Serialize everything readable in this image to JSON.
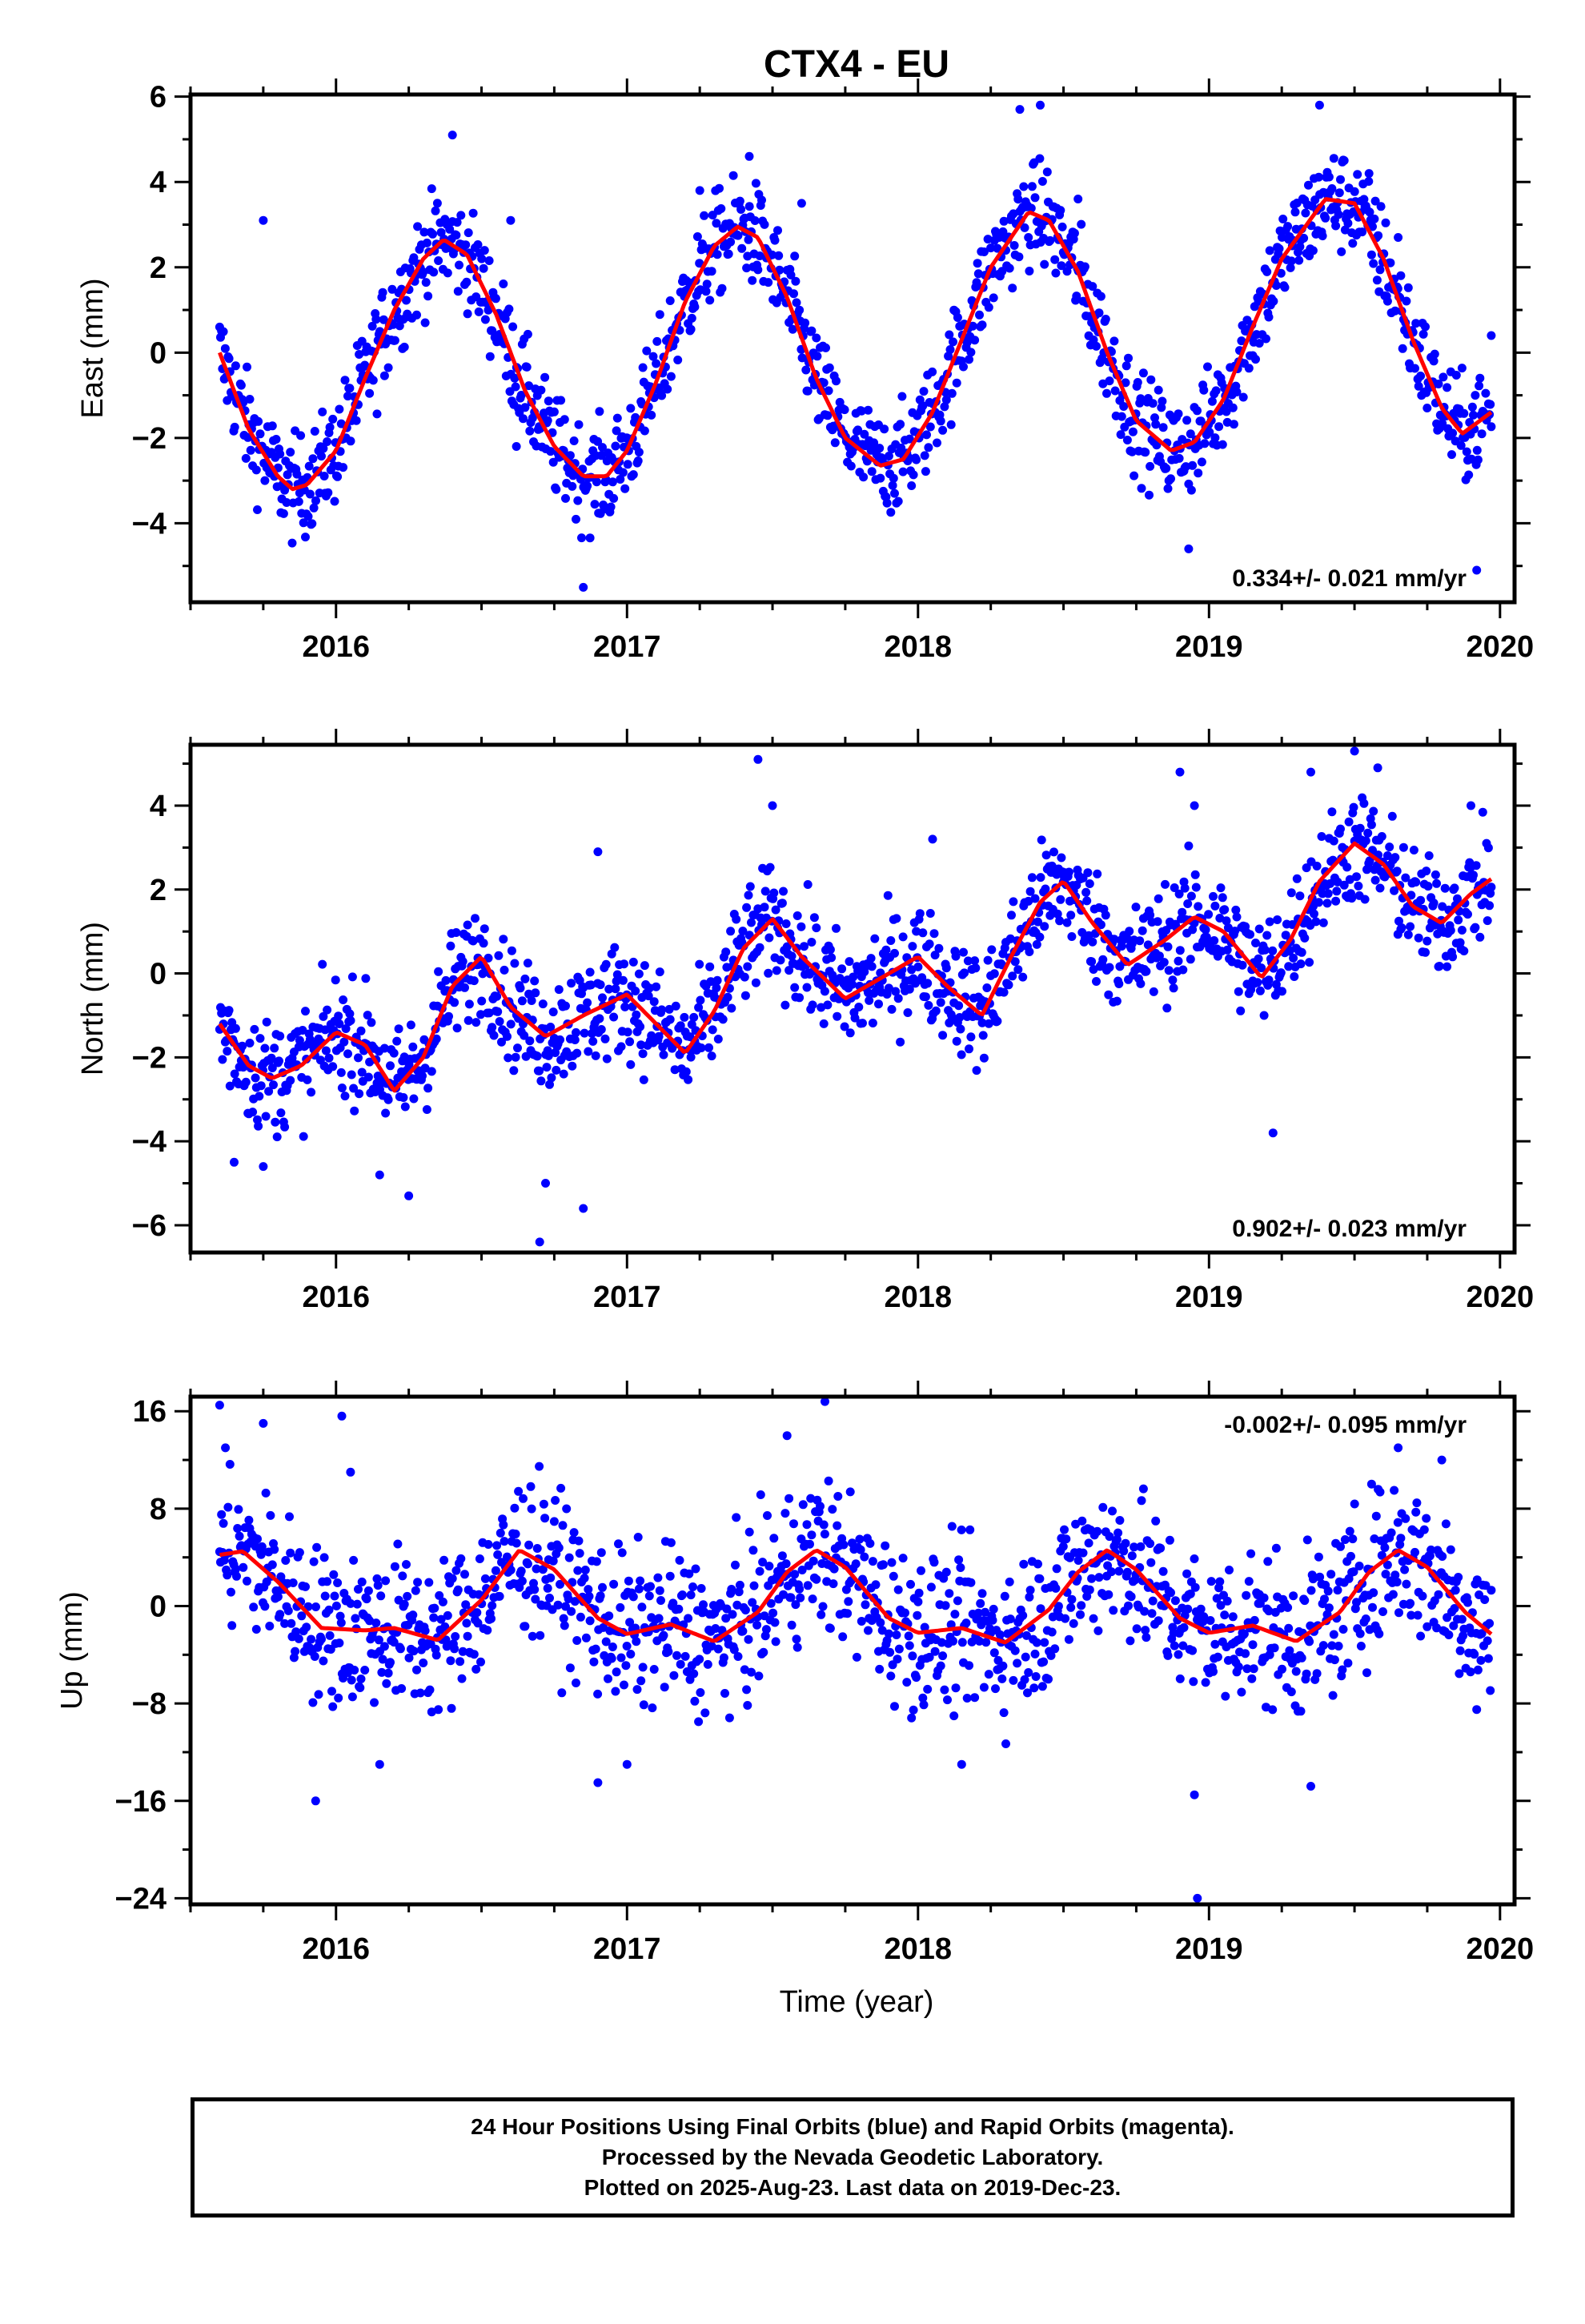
{
  "figure": {
    "title": "CTX4 - EU",
    "xlabel": "Time (year)"
  },
  "colors": {
    "points": "#0000ff",
    "fit": "#ff0000",
    "frame": "#000000"
  },
  "chart_data": [
    {
      "type": "scatter",
      "panel": "east",
      "ylabel": "East (mm)",
      "rate_label": "0.334+/- 0.021 mm/yr",
      "rate_position": "bottom-right",
      "xlim": [
        2015.5,
        2020.05
      ],
      "ylim": [
        -5.85,
        6.05
      ],
      "x_ticks": [
        2016,
        2017,
        2018,
        2019,
        2020
      ],
      "x_tick_labels": [
        "2016",
        "2017",
        "2018",
        "2019",
        "2020"
      ],
      "y_ticks": [
        -4,
        -2,
        0,
        2,
        4,
        6
      ],
      "y_tick_labels": [
        "−4",
        "−2",
        "0",
        "2",
        "4",
        "6"
      ],
      "fit_line": {
        "x": [
          2015.6,
          2015.7,
          2015.8,
          2015.85,
          2015.9,
          2016.0,
          2016.1,
          2016.2,
          2016.3,
          2016.37,
          2016.45,
          2016.55,
          2016.65,
          2016.75,
          2016.85,
          2016.93,
          2017.0,
          2017.1,
          2017.2,
          2017.3,
          2017.38,
          2017.45,
          2017.55,
          2017.65,
          2017.75,
          2017.87,
          2017.95,
          2018.05,
          2018.15,
          2018.25,
          2018.38,
          2018.45,
          2018.55,
          2018.65,
          2018.75,
          2018.87,
          2018.95,
          2019.05,
          2019.15,
          2019.25,
          2019.4,
          2019.5,
          2019.6,
          2019.7,
          2019.8,
          2019.87,
          2019.97
        ],
        "y": [
          0.0,
          -1.8,
          -2.9,
          -3.2,
          -3.1,
          -2.3,
          -0.6,
          1.0,
          2.2,
          2.65,
          2.3,
          0.9,
          -0.9,
          -2.2,
          -2.9,
          -2.9,
          -2.3,
          -0.7,
          1.2,
          2.5,
          2.95,
          2.7,
          1.3,
          -0.6,
          -2.0,
          -2.65,
          -2.5,
          -1.4,
          0.3,
          2.0,
          3.3,
          3.1,
          1.9,
          0.0,
          -1.6,
          -2.3,
          -2.1,
          -1.1,
          0.6,
          2.2,
          3.6,
          3.5,
          2.2,
          0.3,
          -1.3,
          -1.9,
          -1.4
        ]
      },
      "outliers": [
        [
          2015.75,
          3.1
        ],
        [
          2016.4,
          5.1
        ],
        [
          2016.6,
          3.1
        ],
        [
          2016.62,
          -2.2
        ],
        [
          2016.85,
          -5.5
        ],
        [
          2017.25,
          3.8
        ],
        [
          2017.42,
          4.6
        ],
        [
          2017.6,
          3.5
        ],
        [
          2018.35,
          5.7
        ],
        [
          2018.42,
          5.8
        ],
        [
          2018.55,
          3.6
        ],
        [
          2018.93,
          -4.6
        ],
        [
          2019.38,
          5.8
        ],
        [
          2019.55,
          4.2
        ],
        [
          2019.65,
          2.7
        ],
        [
          2019.92,
          -5.1
        ],
        [
          2019.97,
          0.4
        ]
      ],
      "noise_amp": 0.85
    },
    {
      "type": "scatter",
      "panel": "north",
      "ylabel": "North (mm)",
      "rate_label": "0.902+/- 0.023 mm/yr",
      "rate_position": "bottom-right",
      "xlim": [
        2015.5,
        2020.05
      ],
      "ylim": [
        -6.65,
        5.45
      ],
      "x_ticks": [
        2016,
        2017,
        2018,
        2019,
        2020
      ],
      "x_tick_labels": [
        "2016",
        "2017",
        "2018",
        "2019",
        "2020"
      ],
      "y_ticks": [
        -6,
        -4,
        -2,
        0,
        2,
        4
      ],
      "y_tick_labels": [
        "−6",
        "−4",
        "−2",
        "0",
        "2",
        "4"
      ],
      "fit_line": {
        "x": [
          2015.6,
          2015.7,
          2015.78,
          2015.88,
          2016.0,
          2016.1,
          2016.2,
          2016.3,
          2016.4,
          2016.5,
          2016.6,
          2016.72,
          2016.85,
          2017.0,
          2017.1,
          2017.2,
          2017.3,
          2017.4,
          2017.5,
          2017.6,
          2017.75,
          2017.85,
          2018.0,
          2018.1,
          2018.22,
          2018.32,
          2018.42,
          2018.5,
          2018.6,
          2018.72,
          2018.85,
          2018.95,
          2019.05,
          2019.18,
          2019.28,
          2019.38,
          2019.5,
          2019.6,
          2019.7,
          2019.8,
          2019.9,
          2019.97
        ],
        "y": [
          -1.2,
          -2.2,
          -2.5,
          -2.2,
          -1.4,
          -1.7,
          -2.8,
          -2.0,
          -0.3,
          0.4,
          -0.8,
          -1.5,
          -1.0,
          -0.5,
          -1.2,
          -1.9,
          -0.9,
          0.6,
          1.3,
          0.4,
          -0.6,
          -0.2,
          0.4,
          -0.3,
          -1.0,
          0.4,
          1.7,
          2.2,
          1.2,
          0.2,
          0.8,
          1.35,
          1.0,
          -0.1,
          0.8,
          2.2,
          3.1,
          2.6,
          1.6,
          1.2,
          1.9,
          2.25
        ]
      },
      "outliers": [
        [
          2015.65,
          -4.5
        ],
        [
          2015.75,
          -4.6
        ],
        [
          2016.15,
          -4.8
        ],
        [
          2016.25,
          -5.3
        ],
        [
          2016.7,
          -6.4
        ],
        [
          2016.72,
          -5.0
        ],
        [
          2016.85,
          -5.6
        ],
        [
          2016.9,
          2.9
        ],
        [
          2017.45,
          5.1
        ],
        [
          2017.5,
          4.0
        ],
        [
          2018.05,
          3.2
        ],
        [
          2018.9,
          4.8
        ],
        [
          2018.95,
          4.0
        ],
        [
          2019.22,
          -3.8
        ],
        [
          2019.35,
          4.8
        ],
        [
          2019.5,
          5.3
        ],
        [
          2019.58,
          4.9
        ],
        [
          2019.9,
          4.0
        ]
      ],
      "noise_amp": 0.95
    },
    {
      "type": "scatter",
      "panel": "up",
      "ylabel": "Up (mm)",
      "rate_label": "-0.002+/- 0.095 mm/yr",
      "rate_position": "top-right",
      "xlim": [
        2015.5,
        2020.05
      ],
      "ylim": [
        -24.5,
        17.2
      ],
      "x_ticks": [
        2016,
        2017,
        2018,
        2019,
        2020
      ],
      "x_tick_labels": [
        "2016",
        "2017",
        "2018",
        "2019",
        "2020"
      ],
      "y_ticks": [
        -24,
        -16,
        -8,
        0,
        8,
        16
      ],
      "y_tick_labels": [
        "−24",
        "−16",
        "−8",
        "0",
        "8",
        "16"
      ],
      "fit_line": {
        "x": [
          2015.6,
          2015.68,
          2015.8,
          2015.95,
          2016.1,
          2016.2,
          2016.35,
          2016.5,
          2016.63,
          2016.75,
          2016.9,
          2017.0,
          2017.15,
          2017.3,
          2017.45,
          2017.55,
          2017.65,
          2017.75,
          2017.9,
          2018.0,
          2018.15,
          2018.3,
          2018.45,
          2018.55,
          2018.65,
          2018.75,
          2018.9,
          2019.0,
          2019.15,
          2019.3,
          2019.45,
          2019.55,
          2019.65,
          2019.75,
          2019.88,
          2019.97
        ],
        "y": [
          4.2,
          4.5,
          2.0,
          -1.8,
          -2.0,
          -1.8,
          -2.8,
          0.5,
          4.6,
          3.0,
          -1.0,
          -2.3,
          -1.5,
          -2.9,
          -0.5,
          2.8,
          4.6,
          3.2,
          -1.0,
          -2.2,
          -1.8,
          -3.0,
          -0.3,
          2.8,
          4.6,
          3.0,
          -1.0,
          -2.2,
          -1.6,
          -2.9,
          -0.5,
          2.8,
          4.6,
          3.2,
          -0.5,
          -2.3
        ]
      },
      "outliers": [
        [
          2015.6,
          16.5
        ],
        [
          2015.62,
          13.0
        ],
        [
          2015.75,
          15.0
        ],
        [
          2015.93,
          -16.0
        ],
        [
          2016.02,
          15.6
        ],
        [
          2016.05,
          11.0
        ],
        [
          2016.15,
          -13.0
        ],
        [
          2016.9,
          -14.5
        ],
        [
          2017.0,
          -13.0
        ],
        [
          2017.55,
          14.0
        ],
        [
          2017.68,
          16.8
        ],
        [
          2018.15,
          -13.0
        ],
        [
          2018.95,
          -15.5
        ],
        [
          2018.96,
          -24.0
        ],
        [
          2019.35,
          -14.8
        ],
        [
          2019.65,
          13.0
        ],
        [
          2019.8,
          12.0
        ],
        [
          2019.92,
          -8.5
        ]
      ],
      "noise_amp": 4.5
    }
  ],
  "footer": {
    "lines": [
      "24 Hour Positions Using Final Orbits (blue) and Rapid Orbits (magenta).",
      "Processed by the Nevada Geodetic Laboratory.",
      "Plotted on 2025-Aug-23. Last data on 2019-Dec-23."
    ]
  }
}
